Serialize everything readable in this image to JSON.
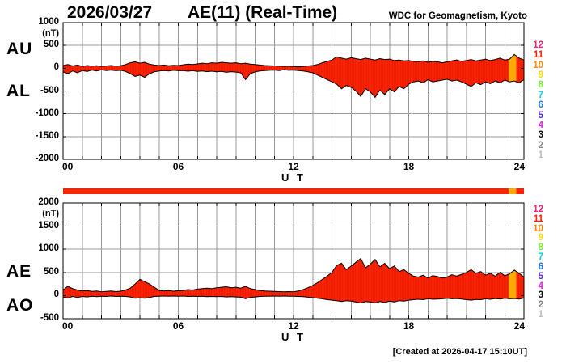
{
  "header": {
    "date": "2026/03/27",
    "title": "AE(11) (Real-Time)",
    "org": "WDC for Geomagnetism, Kyoto"
  },
  "footer": {
    "created": "[Created at 2026-04-17 15:10UT]"
  },
  "station_scale": {
    "values": [
      "12",
      "11",
      "10",
      "9",
      "8",
      "7",
      "6",
      "5",
      "4",
      "3",
      "2",
      "1"
    ],
    "colors": [
      "#ee2277",
      "#ff2200",
      "#ff8800",
      "#ffdd00",
      "#77ee33",
      "#00ccee",
      "#2277ee",
      "#5533dd",
      "#ee22ee",
      "#111111",
      "#888888",
      "#bbbbbb"
    ]
  },
  "quality_bar": {
    "segments": [
      {
        "from": 0,
        "to": 23.2,
        "color": "#ff2200"
      },
      {
        "from": 23.2,
        "to": 23.6,
        "color": "#ffaa00"
      },
      {
        "from": 23.6,
        "to": 24,
        "color": "#ff2200"
      }
    ]
  },
  "chart_data": [
    {
      "type": "area",
      "panel_labels": [
        "AU",
        "AL"
      ],
      "unit": "(nT)",
      "ylim": [
        -2000,
        1000
      ],
      "ytick_step": 500,
      "yticks": [
        "1000",
        "500",
        "0",
        "-500",
        "-1000",
        "-1500",
        "-2000"
      ],
      "xlabel": "U T",
      "xticks": [
        "00",
        "06",
        "12",
        "18",
        "24"
      ],
      "xtick_hours": [
        0,
        6,
        12,
        18,
        24
      ],
      "x_start": 0,
      "x_end": 24,
      "x_step": 0.25,
      "grid": true,
      "fill_color": "#ff2200",
      "line_color": "#000000",
      "grid_color": "#999999",
      "alt_band": {
        "from": 23.2,
        "to": 23.6,
        "color": "#ffaa00"
      },
      "series": [
        {
          "name": "AU",
          "values": [
            60,
            80,
            50,
            70,
            40,
            60,
            45,
            55,
            40,
            50,
            60,
            45,
            55,
            80,
            120,
            140,
            110,
            130,
            90,
            70,
            60,
            70,
            55,
            65,
            60,
            75,
            90,
            80,
            95,
            110,
            100,
            120,
            110,
            130,
            120,
            110,
            120,
            100,
            110,
            90,
            80,
            70,
            60,
            55,
            50,
            45,
            40,
            45,
            35,
            30,
            40,
            50,
            60,
            80,
            120,
            150,
            180,
            250,
            220,
            200,
            230,
            210,
            190,
            220,
            200,
            180,
            210,
            190,
            200,
            170,
            180,
            160,
            170,
            150,
            140,
            160,
            130,
            150,
            140,
            120,
            140,
            160,
            180,
            150,
            170,
            190,
            160,
            180,
            200,
            170,
            190,
            220,
            180,
            200,
            300,
            220,
            180
          ]
        },
        {
          "name": "AL",
          "values": [
            -80,
            -120,
            -60,
            -100,
            -50,
            -70,
            -40,
            -60,
            -35,
            -50,
            -40,
            -55,
            -45,
            -70,
            -120,
            -180,
            -150,
            -200,
            -120,
            -80,
            -60,
            -50,
            -60,
            -45,
            -55,
            -50,
            -65,
            -55,
            -70,
            -60,
            -75,
            -65,
            -80,
            -70,
            -90,
            -75,
            -85,
            -100,
            -250,
            -120,
            -80,
            -60,
            -50,
            -45,
            -40,
            -50,
            -35,
            -45,
            -40,
            -50,
            -60,
            -80,
            -100,
            -150,
            -200,
            -250,
            -300,
            -350,
            -450,
            -380,
            -420,
            -500,
            -620,
            -450,
            -520,
            -640,
            -480,
            -580,
            -450,
            -520,
            -400,
            -450,
            -350,
            -300,
            -280,
            -320,
            -250,
            -300,
            -280,
            -260,
            -240,
            -280,
            -260,
            -300,
            -350,
            -400,
            -320,
            -360,
            -300,
            -340,
            -280,
            -320,
            -260,
            -300,
            -280,
            -320,
            -250
          ]
        }
      ]
    },
    {
      "type": "area",
      "panel_labels": [
        "AE",
        "AO"
      ],
      "unit": "(nT)",
      "ylim": [
        -500,
        2000
      ],
      "ytick_step": 500,
      "yticks": [
        "2000",
        "1500",
        "1000",
        "500",
        "0",
        "-500"
      ],
      "xlabel": "U T",
      "xticks": [
        "00",
        "06",
        "12",
        "18",
        "24"
      ],
      "xtick_hours": [
        0,
        6,
        12,
        18,
        24
      ],
      "x_start": 0,
      "x_end": 24,
      "x_step": 0.25,
      "grid": true,
      "fill_color": "#ff2200",
      "line_color": "#000000",
      "grid_color": "#999999",
      "alt_band": {
        "from": 23.2,
        "to": 23.6,
        "color": "#ffaa00"
      },
      "series": [
        {
          "name": "AE",
          "values": [
            120,
            200,
            150,
            120,
            100,
            110,
            90,
            100,
            80,
            90,
            100,
            85,
            95,
            120,
            160,
            250,
            350,
            300,
            250,
            180,
            110,
            100,
            110,
            95,
            105,
            110,
            130,
            120,
            140,
            150,
            160,
            150,
            170,
            180,
            190,
            170,
            180,
            160,
            200,
            150,
            130,
            110,
            100,
            95,
            90,
            85,
            80,
            85,
            80,
            100,
            130,
            170,
            220,
            280,
            350,
            420,
            500,
            650,
            700,
            560,
            640,
            720,
            800,
            600,
            680,
            780,
            620,
            700,
            580,
            640,
            520,
            560,
            480,
            420,
            400,
            440,
            380,
            430,
            410,
            380,
            400,
            450,
            420,
            460,
            500,
            560,
            480,
            520,
            440,
            480,
            420,
            500,
            430,
            470,
            550,
            480,
            400
          ]
        },
        {
          "name": "AO",
          "values": [
            -30,
            -50,
            -20,
            -40,
            -20,
            -30,
            -15,
            -25,
            -15,
            -20,
            -10,
            -20,
            -15,
            -20,
            -30,
            -60,
            -50,
            -60,
            -40,
            -20,
            -15,
            -10,
            -15,
            -10,
            -15,
            -10,
            -20,
            -15,
            -20,
            -15,
            -25,
            -20,
            -25,
            -20,
            -30,
            -25,
            -30,
            -35,
            -70,
            -40,
            -30,
            -20,
            -15,
            -15,
            -10,
            -15,
            -10,
            -15,
            -15,
            -20,
            -25,
            -35,
            -45,
            -60,
            -70,
            -90,
            -100,
            -110,
            -130,
            -110,
            -120,
            -140,
            -160,
            -130,
            -140,
            -160,
            -130,
            -150,
            -120,
            -140,
            -110,
            -120,
            -100,
            -90,
            -80,
            -90,
            -70,
            -80,
            -75,
            -70,
            -60,
            -70,
            -65,
            -75,
            -90,
            -100,
            -85,
            -90,
            -70,
            -80,
            -65,
            -75,
            -60,
            -70,
            -65,
            -75,
            -55
          ]
        }
      ]
    }
  ]
}
